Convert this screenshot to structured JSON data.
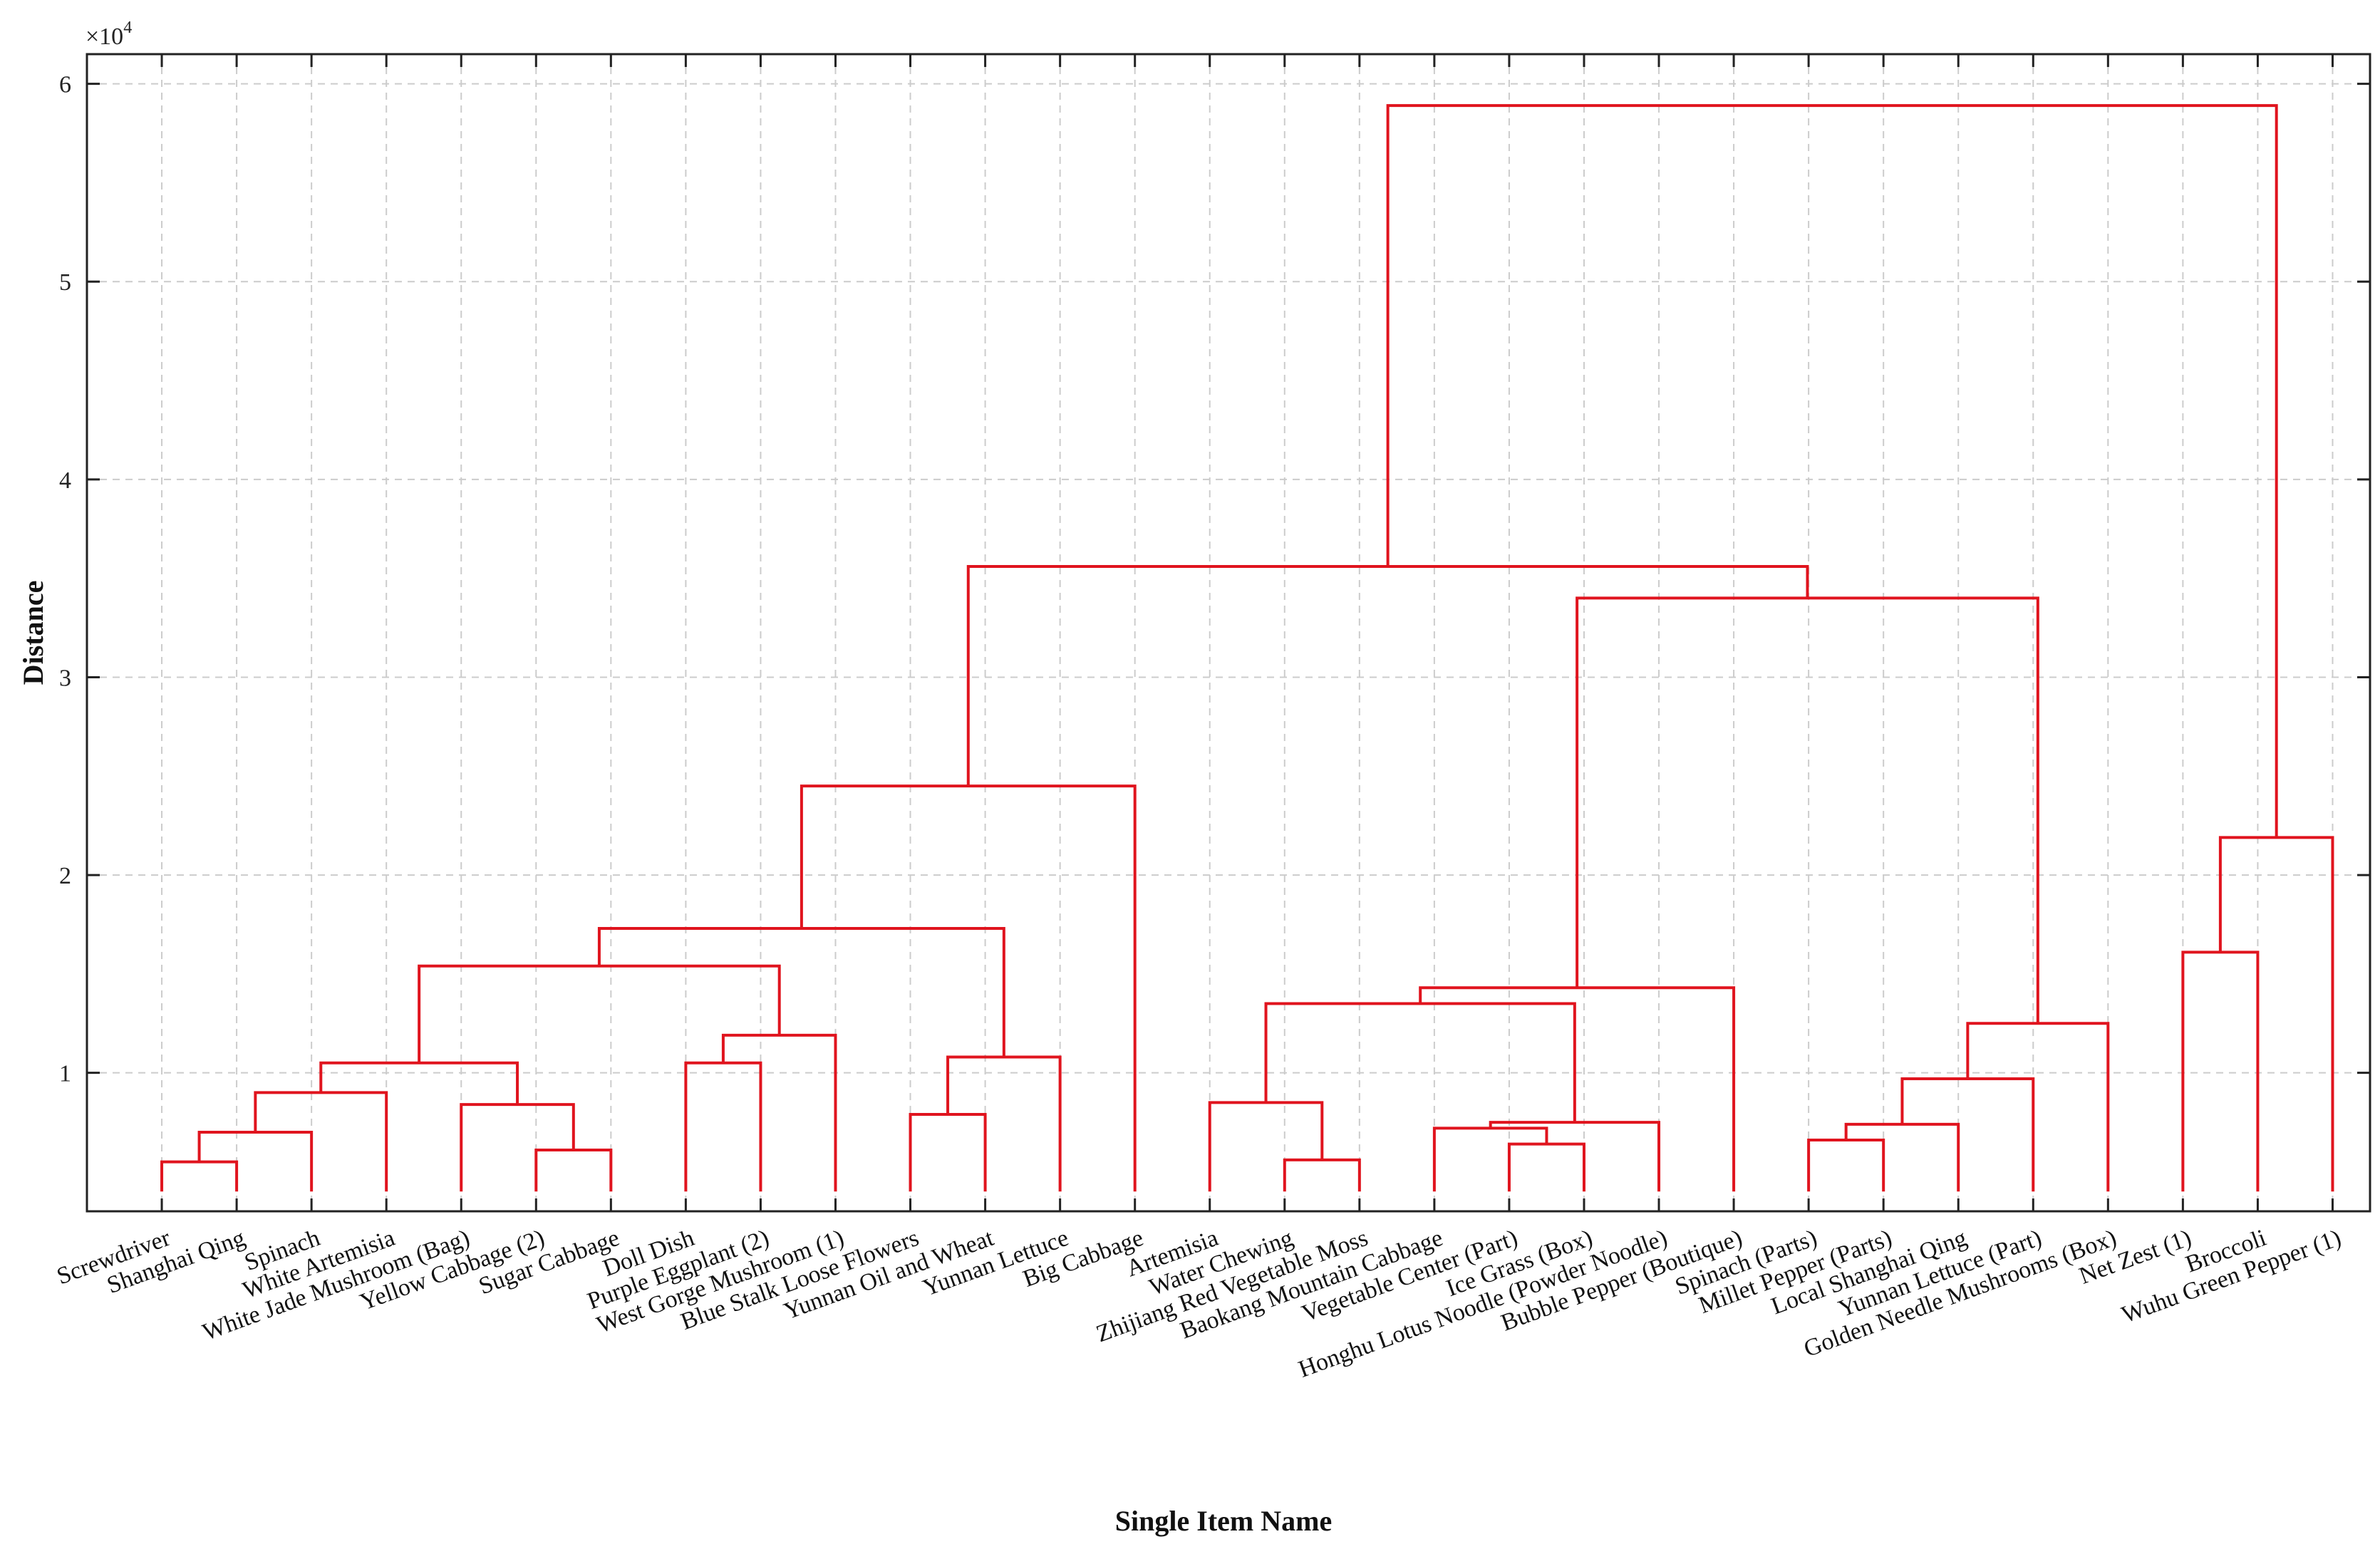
{
  "chart_data": {
    "type": "dendrogram",
    "xlabel": "Single Item Name",
    "ylabel": "Distance",
    "y_multiplier_label": "×10",
    "y_multiplier_exp": "4",
    "ylim": [
      3000,
      61500
    ],
    "yticks": [
      10000,
      20000,
      30000,
      40000,
      50000,
      60000
    ],
    "ytick_labels": [
      "1",
      "2",
      "3",
      "4",
      "5",
      "6"
    ],
    "grid": true,
    "line_color": "#e0141e",
    "leaves": [
      "Screwdriver",
      "Shanghai Qing",
      "Spinach",
      "White Artemisia",
      "White Jade Mushroom (Bag)",
      "Yellow Cabbage (2)",
      "Sugar Cabbage",
      "Doll Dish",
      "Purple Eggplant (2)",
      "West Gorge Mushroom (1)",
      "Blue Stalk Loose Flowers",
      "Yunnan Oil and Wheat",
      "Yunnan Lettuce",
      "Big Cabbage",
      "Artemisia",
      "Water Chewing",
      "Zhijiang Red Vegetable Moss",
      "Baokang Mountain Cabbage",
      "Vegetable Center (Part)",
      "Ice Grass (Box)",
      "Honghu Lotus Noodle (Powder Noodle)",
      "Bubble Pepper (Boutique)",
      "Spinach (Parts)",
      "Millet Pepper (Parts)",
      "Local Shanghai Qing",
      "Yunnan Lettuce (Part)",
      "Golden Needle Mushrooms (Box)",
      "Net Zest (1)",
      "Broccoli",
      "Wuhu Green Pepper (1)"
    ],
    "leaf_base": 4000,
    "merges": [
      [
        0,
        1,
        5500
      ],
      [
        2,
        30,
        7000
      ],
      [
        3,
        31,
        9000
      ],
      [
        5,
        6,
        6100
      ],
      [
        4,
        33,
        8400
      ],
      [
        32,
        34,
        10500
      ],
      [
        7,
        8,
        10500
      ],
      [
        9,
        36,
        11900
      ],
      [
        35,
        37,
        15400
      ],
      [
        10,
        11,
        7900
      ],
      [
        12,
        39,
        10800
      ],
      [
        38,
        40,
        17300
      ],
      [
        13,
        41,
        24500
      ],
      [
        15,
        16,
        5600
      ],
      [
        14,
        43,
        8500
      ],
      [
        18,
        19,
        6400
      ],
      [
        17,
        45,
        7200
      ],
      [
        20,
        46,
        7500
      ],
      [
        44,
        47,
        13500
      ],
      [
        21,
        48,
        14300
      ],
      [
        22,
        23,
        6600
      ],
      [
        24,
        50,
        7400
      ],
      [
        25,
        51,
        9700
      ],
      [
        26,
        52,
        12500
      ],
      [
        49,
        53,
        34000
      ],
      [
        42,
        54,
        35600
      ],
      [
        27,
        28,
        16100
      ],
      [
        29,
        56,
        21900
      ],
      [
        55,
        57,
        58900
      ]
    ]
  }
}
